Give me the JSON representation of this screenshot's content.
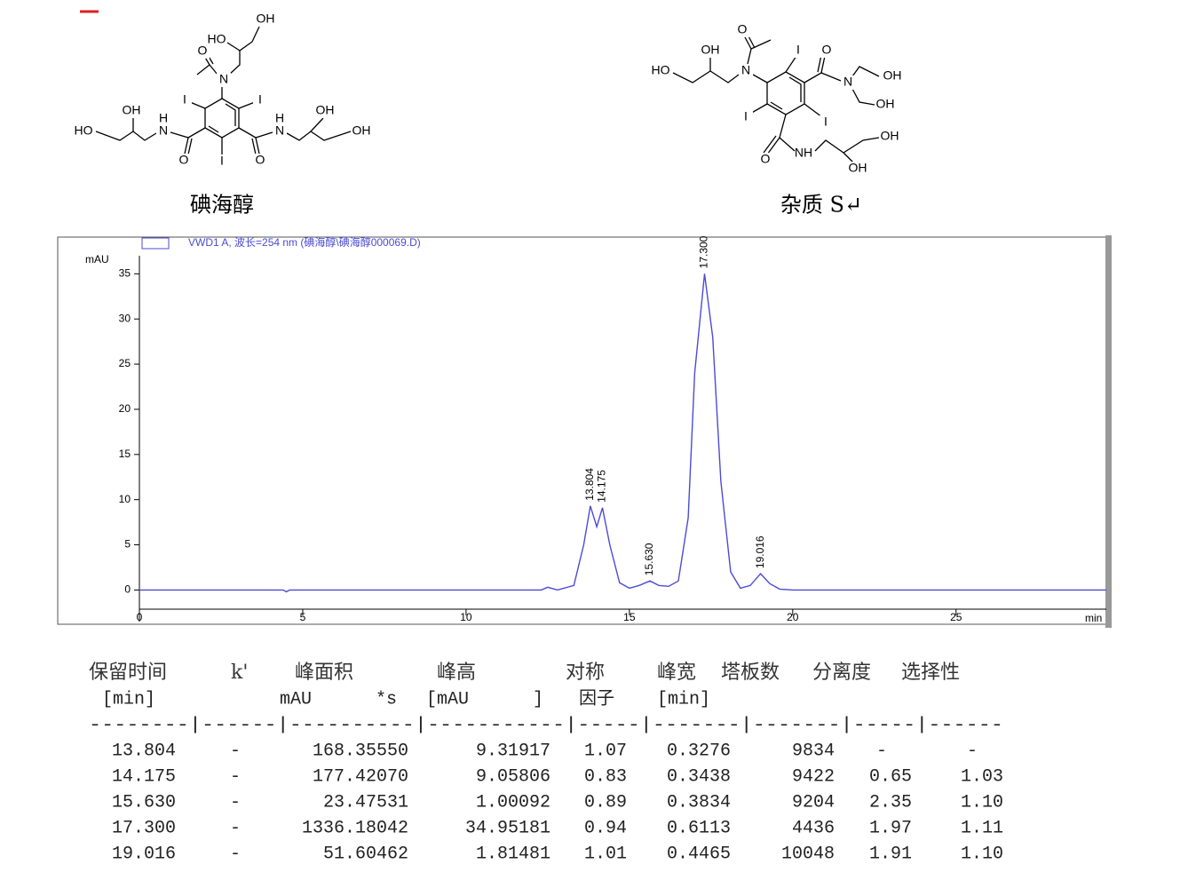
{
  "structures": [
    {
      "caption": "碘海醇",
      "atoms": [
        "OH",
        "HO",
        "O",
        "N",
        "I",
        "I",
        "OH",
        "H",
        "N",
        "OH",
        "H",
        "N",
        "HO",
        "OH",
        "O",
        "I",
        "O"
      ]
    },
    {
      "caption": "杂质 S↵",
      "atoms": [
        "O",
        "OH",
        "I",
        "O",
        "HO",
        "N",
        "N",
        "OH",
        "OH",
        "I",
        "I",
        "OH",
        "O",
        "NH",
        "OH"
      ]
    }
  ],
  "chart_data": {
    "type": "line",
    "legend": "VWD1 A, 波长=254 nm (碘海醇\\碘海醇000069.D)",
    "y_label": "mAU",
    "x_label": "min",
    "color": "#4b4bd6",
    "x": [
      0,
      4.4,
      4.5,
      4.6,
      12.3,
      12.5,
      12.8,
      13.3,
      13.6,
      13.804,
      14.0,
      14.175,
      14.4,
      14.7,
      15.0,
      15.3,
      15.63,
      15.9,
      16.2,
      16.5,
      16.8,
      17.0,
      17.3,
      17.55,
      17.8,
      18.1,
      18.4,
      18.7,
      19.016,
      19.3,
      19.6,
      20,
      29.6
    ],
    "values": [
      0,
      0,
      -0.2,
      0,
      0,
      0.3,
      0,
      0.5,
      5,
      9.3,
      7.0,
      9.1,
      5,
      0.8,
      0.2,
      0.5,
      1.0,
      0.5,
      0.4,
      1,
      8,
      24,
      35,
      28,
      12,
      2,
      0.2,
      0.5,
      1.8,
      0.7,
      0.1,
      0,
      0
    ],
    "peaks": [
      {
        "x": 13.804,
        "y": 9.3,
        "label": "13.804"
      },
      {
        "x": 14.175,
        "y": 9.1,
        "label": "14.175"
      },
      {
        "x": 15.63,
        "y": 1.0,
        "label": "15.630"
      },
      {
        "x": 17.3,
        "y": 35,
        "label": "17.300"
      },
      {
        "x": 19.016,
        "y": 1.8,
        "label": "19.016"
      }
    ],
    "xlim": [
      0,
      29.6
    ],
    "ylim": [
      -3.5,
      37
    ],
    "xticks": [
      0,
      5,
      10,
      15,
      20,
      25
    ],
    "yticks": [
      0,
      5,
      10,
      15,
      20,
      25,
      30,
      35
    ]
  },
  "table": {
    "header": [
      [
        "保留时间",
        "k'",
        "峰面积",
        "峰高",
        "对称",
        "峰宽",
        "塔板数",
        "分离度",
        "选择性"
      ],
      [
        "[min]",
        "mAU      *s",
        "[mAU      ]",
        "因子",
        "[min]"
      ]
    ],
    "separator": "--------|------|----------|-----------|-----|-------|-------|-----|------",
    "rows": [
      [
        "13.804",
        "-",
        "168.35550",
        "9.31917",
        "1.07",
        "0.3276",
        "9834",
        "-",
        "-"
      ],
      [
        "14.175",
        "-",
        "177.42070",
        "9.05806",
        "0.83",
        "0.3438",
        "9422",
        "0.65",
        "1.03"
      ],
      [
        "15.630",
        "-",
        "23.47531",
        "1.00092",
        "0.89",
        "0.3834",
        "9204",
        "2.35",
        "1.10"
      ],
      [
        "17.300",
        "-",
        "1336.18042",
        "34.95181",
        "0.94",
        "0.6113",
        "4436",
        "1.97",
        "1.11"
      ],
      [
        "19.016",
        "-",
        "51.60462",
        "1.81481",
        "1.01",
        "0.4465",
        "10048",
        "1.91",
        "1.10"
      ]
    ]
  }
}
